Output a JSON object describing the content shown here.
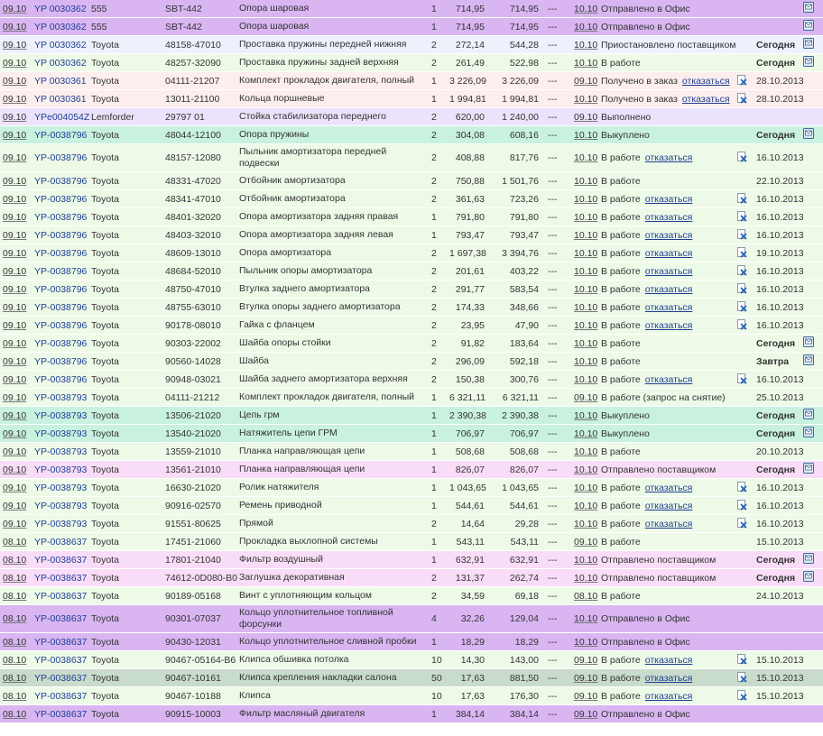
{
  "rows": [
    {
      "date": "09.10",
      "order": "YP 0030362",
      "brand": "555",
      "part": "SBT-442",
      "name": "Опора шаровая",
      "qty": 1,
      "price": "714,95",
      "sum": "714,95",
      "dash": "---",
      "date2": "10.10",
      "status": "Отправлено в Офис",
      "icon": true,
      "bg": "#d9b6f2"
    },
    {
      "date": "09.10",
      "order": "YP 0030362",
      "brand": "555",
      "part": "SBT-442",
      "name": "Опора шаровая",
      "qty": 1,
      "price": "714,95",
      "sum": "714,95",
      "dash": "---",
      "date2": "10.10",
      "status": "Отправлено в Офис",
      "icon": true,
      "bg": "#d9b6f2"
    },
    {
      "date": "09.10",
      "order": "YP 0030362",
      "brand": "Toyota",
      "part": "48158-47010",
      "name": "Проставка пружины передней нижняя",
      "qty": 2,
      "price": "272,14",
      "sum": "544,28",
      "dash": "---",
      "date2": "10.10",
      "status": "Приостановлено поставщиком",
      "delivery": "Сегодня",
      "icon": true,
      "bg": "#eef0fc"
    },
    {
      "date": "09.10",
      "order": "YP 0030362",
      "brand": "Toyota",
      "part": "48257-32090",
      "name": "Проставка пружины задней верхняя",
      "qty": 2,
      "price": "261,49",
      "sum": "522,98",
      "dash": "---",
      "date2": "10.10",
      "status": "В работе",
      "delivery": "Сегодня",
      "icon": true,
      "bg": "#eefae8"
    },
    {
      "date": "09.10",
      "order": "YP 0030361",
      "brand": "Toyota",
      "part": "04111-21207",
      "name": "Комплект прокладок двигателя, полный",
      "qty": 1,
      "price": "3 226,09",
      "sum": "3 226,09",
      "dash": "---",
      "date2": "09.10",
      "status": "Получено в заказ",
      "cancel": "отказаться",
      "delivery": "28.10.2013",
      "bg": "#fdeeee"
    },
    {
      "date": "09.10",
      "order": "YP 0030361",
      "brand": "Toyota",
      "part": "13011-21100",
      "name": "Кольца поршневые",
      "qty": 1,
      "price": "1 994,81",
      "sum": "1 994,81",
      "dash": "---",
      "date2": "10.10",
      "status": "Получено в заказ",
      "cancel": "отказаться",
      "delivery": "28.10.2013",
      "bg": "#fdeeee"
    },
    {
      "date": "09.10",
      "order": "YPe004054Z",
      "brand": "Lemforder",
      "part": "29797 01",
      "name": "Стойка стабилизатора переднего",
      "qty": 2,
      "price": "620,00",
      "sum": "1 240,00",
      "dash": "---",
      "date2": "09.10",
      "status": "Выполнено",
      "bg": "#ebe3fb"
    },
    {
      "date": "09.10",
      "order": "YP-0038796",
      "brand": "Toyota",
      "part": "48044-12100",
      "name": "Опора пружины",
      "qty": 2,
      "price": "304,08",
      "sum": "608,16",
      "dash": "---",
      "date2": "10.10",
      "status": "Выкуплено",
      "delivery": "Сегодня",
      "icon": true,
      "bg": "#c9f1e0"
    },
    {
      "date": "09.10",
      "order": "YP-0038796",
      "brand": "Toyota",
      "part": "48157-12080",
      "name": "Пыльник амортизатора передней подвески",
      "qty": 2,
      "price": "408,88",
      "sum": "817,76",
      "dash": "---",
      "date2": "10.10",
      "status": "В работе",
      "cancel": "отказаться",
      "delivery": "16.10.2013",
      "bg": "#eefae8"
    },
    {
      "date": "09.10",
      "order": "YP-0038796",
      "brand": "Toyota",
      "part": "48331-47020",
      "name": "Отбойник амортизатора",
      "qty": 2,
      "price": "750,88",
      "sum": "1 501,76",
      "dash": "---",
      "date2": "10.10",
      "status": "В работе",
      "delivery": "22.10.2013",
      "bg": "#eefae8"
    },
    {
      "date": "09.10",
      "order": "YP-0038796",
      "brand": "Toyota",
      "part": "48341-47010",
      "name": "Отбойник амортизатора",
      "qty": 2,
      "price": "361,63",
      "sum": "723,26",
      "dash": "---",
      "date2": "10.10",
      "status": "В работе",
      "cancel": "отказаться",
      "delivery": "16.10.2013",
      "bg": "#eefae8"
    },
    {
      "date": "09.10",
      "order": "YP-0038796",
      "brand": "Toyota",
      "part": "48401-32020",
      "name": "Опора амортизатора задняя правая",
      "qty": 1,
      "price": "791,80",
      "sum": "791,80",
      "dash": "---",
      "date2": "10.10",
      "status": "В работе",
      "cancel": "отказаться",
      "delivery": "16.10.2013",
      "bg": "#eefae8"
    },
    {
      "date": "09.10",
      "order": "YP-0038796",
      "brand": "Toyota",
      "part": "48403-32010",
      "name": "Опора амортизатора задняя левая",
      "qty": 1,
      "price": "793,47",
      "sum": "793,47",
      "dash": "---",
      "date2": "10.10",
      "status": "В работе",
      "cancel": "отказаться",
      "delivery": "16.10.2013",
      "bg": "#eefae8"
    },
    {
      "date": "09.10",
      "order": "YP-0038796",
      "brand": "Toyota",
      "part": "48609-13010",
      "name": "Опора амортизатора",
      "qty": 2,
      "price": "1 697,38",
      "sum": "3 394,76",
      "dash": "---",
      "date2": "10.10",
      "status": "В работе",
      "cancel": "отказаться",
      "delivery": "19.10.2013",
      "bg": "#eefae8"
    },
    {
      "date": "09.10",
      "order": "YP-0038796",
      "brand": "Toyota",
      "part": "48684-52010",
      "name": "Пыльник опоры амортизатора",
      "qty": 2,
      "price": "201,61",
      "sum": "403,22",
      "dash": "---",
      "date2": "10.10",
      "status": "В работе",
      "cancel": "отказаться",
      "delivery": "16.10.2013",
      "bg": "#eefae8"
    },
    {
      "date": "09.10",
      "order": "YP-0038796",
      "brand": "Toyota",
      "part": "48750-47010",
      "name": "Втулка заднего амортизатора",
      "qty": 2,
      "price": "291,77",
      "sum": "583,54",
      "dash": "---",
      "date2": "10.10",
      "status": "В работе",
      "cancel": "отказаться",
      "delivery": "16.10.2013",
      "bg": "#eefae8"
    },
    {
      "date": "09.10",
      "order": "YP-0038796",
      "brand": "Toyota",
      "part": "48755-63010",
      "name": "Втулка опоры заднего амортизатора",
      "qty": 2,
      "price": "174,33",
      "sum": "348,66",
      "dash": "---",
      "date2": "10.10",
      "status": "В работе",
      "cancel": "отказаться",
      "delivery": "16.10.2013",
      "bg": "#eefae8"
    },
    {
      "date": "09.10",
      "order": "YP-0038796",
      "brand": "Toyota",
      "part": "90178-08010",
      "name": "Гайка с фланцем",
      "qty": 2,
      "price": "23,95",
      "sum": "47,90",
      "dash": "---",
      "date2": "10.10",
      "status": "В работе",
      "cancel": "отказаться",
      "delivery": "16.10.2013",
      "bg": "#eefae8"
    },
    {
      "date": "09.10",
      "order": "YP-0038796",
      "brand": "Toyota",
      "part": "90303-22002",
      "name": "Шайба опоры стойки",
      "qty": 2,
      "price": "91,82",
      "sum": "183,64",
      "dash": "---",
      "date2": "10.10",
      "status": "В работе",
      "delivery": "Сегодня",
      "icon": true,
      "bg": "#eefae8"
    },
    {
      "date": "09.10",
      "order": "YP-0038796",
      "brand": "Toyota",
      "part": "90560-14028",
      "name": "Шайба",
      "qty": 2,
      "price": "296,09",
      "sum": "592,18",
      "dash": "---",
      "date2": "10.10",
      "status": "В работе",
      "delivery": "Завтра",
      "icon": true,
      "bg": "#eefae8"
    },
    {
      "date": "09.10",
      "order": "YP-0038796",
      "brand": "Toyota",
      "part": "90948-03021",
      "name": "Шайба заднего амортизатора верхняя",
      "qty": 2,
      "price": "150,38",
      "sum": "300,76",
      "dash": "---",
      "date2": "10.10",
      "status": "В работе",
      "cancel": "отказаться",
      "delivery": "16.10.2013",
      "bg": "#eefae8"
    },
    {
      "date": "09.10",
      "order": "YP-0038793",
      "brand": "Toyota",
      "part": "04111-21212",
      "name": "Комплект прокладок двигателя, полный",
      "qty": 1,
      "price": "6 321,11",
      "sum": "6 321,11",
      "dash": "---",
      "date2": "09.10",
      "status": "В работе (запрос на снятие)",
      "delivery": "25.10.2013",
      "bg": "#eefae8"
    },
    {
      "date": "09.10",
      "order": "YP-0038793",
      "brand": "Toyota",
      "part": "13506-21020",
      "name": "Цепь грм",
      "qty": 1,
      "price": "2 390,38",
      "sum": "2 390,38",
      "dash": "---",
      "date2": "10.10",
      "status": "Выкуплено",
      "delivery": "Сегодня",
      "icon": true,
      "bg": "#c9f1e0"
    },
    {
      "date": "09.10",
      "order": "YP-0038793",
      "brand": "Toyota",
      "part": "13540-21020",
      "name": "Натяжитель цепи ГРМ",
      "qty": 1,
      "price": "706,97",
      "sum": "706,97",
      "dash": "---",
      "date2": "10.10",
      "status": "Выкуплено",
      "delivery": "Сегодня",
      "icon": true,
      "bg": "#c9f1e0"
    },
    {
      "date": "09.10",
      "order": "YP-0038793",
      "brand": "Toyota",
      "part": "13559-21010",
      "name": "Планка направляющая цепи",
      "qty": 1,
      "price": "508,68",
      "sum": "508,68",
      "dash": "---",
      "date2": "10.10",
      "status": "В работе",
      "delivery": "20.10.2013",
      "bg": "#eefae8"
    },
    {
      "date": "09.10",
      "order": "YP-0038793",
      "brand": "Toyota",
      "part": "13561-21010",
      "name": "Планка направляющая цепи",
      "qty": 1,
      "price": "826,07",
      "sum": "826,07",
      "dash": "---",
      "date2": "10.10",
      "status": "Отправлено поставщиком",
      "delivery": "Сегодня",
      "icon": true,
      "bg": "#f9ddf8"
    },
    {
      "date": "09.10",
      "order": "YP-0038793",
      "brand": "Toyota",
      "part": "16630-21020",
      "name": "Ролик натяжителя",
      "qty": 1,
      "price": "1 043,65",
      "sum": "1 043,65",
      "dash": "---",
      "date2": "10.10",
      "status": "В работе",
      "cancel": "отказаться",
      "delivery": "16.10.2013",
      "bg": "#eefae8"
    },
    {
      "date": "09.10",
      "order": "YP-0038793",
      "brand": "Toyota",
      "part": "90916-02570",
      "name": "Ремень приводной",
      "qty": 1,
      "price": "544,61",
      "sum": "544,61",
      "dash": "---",
      "date2": "10.10",
      "status": "В работе",
      "cancel": "отказаться",
      "delivery": "16.10.2013",
      "bg": "#eefae8"
    },
    {
      "date": "09.10",
      "order": "YP-0038793",
      "brand": "Toyota",
      "part": "91551-80625",
      "name": "Прямой",
      "qty": 2,
      "price": "14,64",
      "sum": "29,28",
      "dash": "---",
      "date2": "10.10",
      "status": "В работе",
      "cancel": "отказаться",
      "delivery": "16.10.2013",
      "bg": "#eefae8"
    },
    {
      "date": "08.10",
      "order": "YP-0038637",
      "brand": "Toyota",
      "part": "17451-21060",
      "name": "Прокладка выхлопной системы",
      "qty": 1,
      "price": "543,11",
      "sum": "543,11",
      "dash": "---",
      "date2": "09.10",
      "status": "В работе",
      "delivery": "15.10.2013",
      "bg": "#eefae8"
    },
    {
      "date": "08.10",
      "order": "YP-0038637",
      "brand": "Toyota",
      "part": "17801-21040",
      "name": "Фильтр воздушный",
      "qty": 1,
      "price": "632,91",
      "sum": "632,91",
      "dash": "---",
      "date2": "10.10",
      "status": "Отправлено поставщиком",
      "delivery": "Сегодня",
      "icon": true,
      "bg": "#f9ddf8"
    },
    {
      "date": "08.10",
      "order": "YP-0038637",
      "brand": "Toyota",
      "part": "74612-0D080-B0",
      "name": "Заглушка декоративная",
      "qty": 2,
      "price": "131,37",
      "sum": "262,74",
      "dash": "---",
      "date2": "10.10",
      "status": "Отправлено поставщиком",
      "delivery": "Сегодня",
      "icon": true,
      "bg": "#f9ddf8"
    },
    {
      "date": "08.10",
      "order": "YP-0038637",
      "brand": "Toyota",
      "part": "90189-05168",
      "name": "Винт с уплотняющим кольцом",
      "qty": 2,
      "price": "34,59",
      "sum": "69,18",
      "dash": "---",
      "date2": "08.10",
      "status": "В работе",
      "delivery": "24.10.2013",
      "bg": "#eefae8"
    },
    {
      "date": "08.10",
      "order": "YP-0038637",
      "brand": "Toyota",
      "part": "90301-07037",
      "name": "Кольцо уплотнительное топливной форсунки",
      "qty": 4,
      "price": "32,26",
      "sum": "129,04",
      "dash": "---",
      "date2": "10.10",
      "status": "Отправлено в Офис",
      "bg": "#d9b6f2"
    },
    {
      "date": "08.10",
      "order": "YP-0038637",
      "brand": "Toyota",
      "part": "90430-12031",
      "name": "Кольцо уплотнительное сливной пробки",
      "qty": 1,
      "price": "18,29",
      "sum": "18,29",
      "dash": "---",
      "date2": "10.10",
      "status": "Отправлено в Офис",
      "bg": "#d9b6f2"
    },
    {
      "date": "08.10",
      "order": "YP-0038637",
      "brand": "Toyota",
      "part": "90467-05164-B6",
      "name": "Клипса обшивка потолка",
      "qty": 10,
      "price": "14,30",
      "sum": "143,00",
      "dash": "---",
      "date2": "09.10",
      "status": "В работе",
      "cancel": "отказаться",
      "delivery": "15.10.2013",
      "bg": "#eefae8"
    },
    {
      "date": "08.10",
      "order": "YP-0038637",
      "brand": "Toyota",
      "part": "90467-10161",
      "name": "Клипса крепления накладки салона",
      "qty": 50,
      "price": "17,63",
      "sum": "881,50",
      "dash": "---",
      "date2": "09.10",
      "status": "В работе",
      "cancel": "отказаться",
      "delivery": "15.10.2013",
      "bg": "#c9dccc"
    },
    {
      "date": "08.10",
      "order": "YP-0038637",
      "brand": "Toyota",
      "part": "90467-10188",
      "name": "Клипса",
      "qty": 10,
      "price": "17,63",
      "sum": "176,30",
      "dash": "---",
      "date2": "09.10",
      "status": "В работе",
      "cancel": "отказаться",
      "delivery": "15.10.2013",
      "bg": "#eefae8"
    },
    {
      "date": "08.10",
      "order": "YP-0038637",
      "brand": "Toyota",
      "part": "90915-10003",
      "name": "Фильтр масляный двигателя",
      "qty": 1,
      "price": "384,14",
      "sum": "384,14",
      "dash": "---",
      "date2": "09.10",
      "status": "Отправлено в Офис",
      "bg": "#d9b6f2"
    }
  ]
}
